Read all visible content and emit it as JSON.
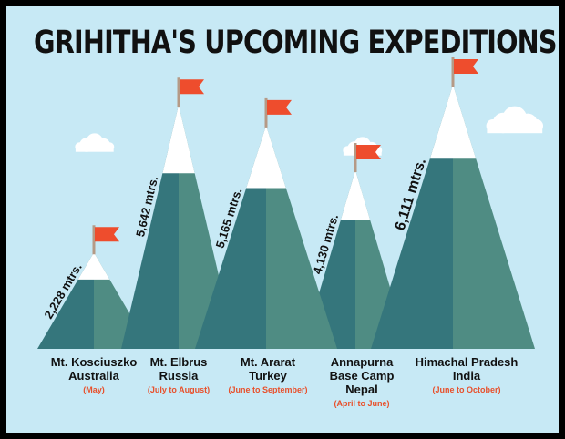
{
  "title": "GRIHITHA'S UPCOMING EXPEDITIONS",
  "colors": {
    "sky": "#c7e9f5",
    "mountain_dark": "#35767c",
    "mountain_light": "#4f8c83",
    "snow": "#ffffff",
    "flag": "#ee4d2d",
    "pole": "#b59a86",
    "date_text": "#e8502b"
  },
  "chart_data": {
    "type": "bar",
    "title": "GRIHITHA'S UPCOMING EXPEDITIONS",
    "unit": "mtrs.",
    "categories": [
      "Mt. Kosciuszko",
      "Mt. Elbrus",
      "Mt. Ararat",
      "Annapurna Base Camp",
      "Himachal Pradesh"
    ],
    "values": [
      2228,
      5642,
      5165,
      4130,
      6111
    ],
    "height_labels": [
      "2,228 mtrs.",
      "5,642 mtrs.",
      "5,165 mtrs.",
      "4,130 mtrs.",
      "6,111 mtrs."
    ],
    "locations": [
      {
        "name": "Mt. Kosciuszko\nAustralia",
        "when": "(May)"
      },
      {
        "name": "Mt. Elbrus\nRussia",
        "when": "(July to August)"
      },
      {
        "name": "Mt. Ararat\nTurkey",
        "when": "(June to September)"
      },
      {
        "name": "Annapurna\nBase Camp\nNepal",
        "when": "(April  to June)"
      },
      {
        "name": "Himachal Pradesh\nIndia",
        "when": "(June to October)"
      }
    ]
  }
}
